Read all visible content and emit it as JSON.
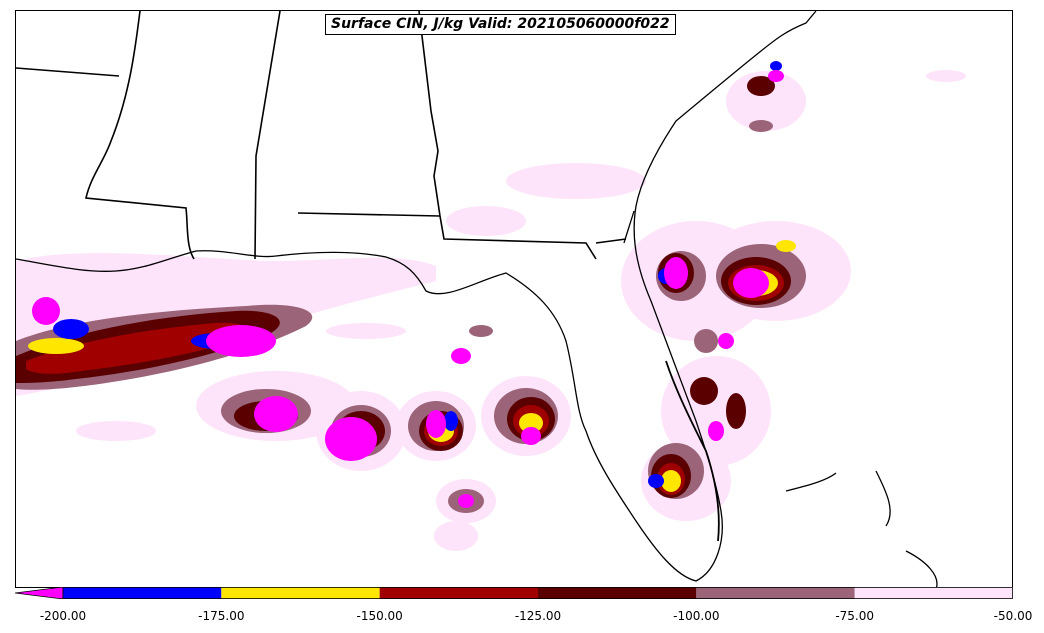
{
  "title": "Surface CIN, J/kg Valid: 202105060000f022",
  "colorbar": {
    "extend_min_color": "#ff00ff",
    "bins": [
      {
        "from": -200,
        "to": -175,
        "color": "#0000ff"
      },
      {
        "from": -175,
        "to": -150,
        "color": "#ffe600"
      },
      {
        "from": -150,
        "to": -125,
        "color": "#a00000"
      },
      {
        "from": -125,
        "to": -100,
        "color": "#5a0000"
      },
      {
        "from": -100,
        "to": -75,
        "color": "#9b6478"
      },
      {
        "from": -75,
        "to": -50,
        "color": "#fde4fa"
      }
    ],
    "tick_labels": [
      "-200.00",
      "-175.00",
      "-150.00",
      "-125.00",
      "-100.00",
      "-75.00",
      "-50.00"
    ]
  },
  "field_colors": {
    "lt_-200": "#ff00ff",
    "-200_-175": "#0000ff",
    "-175_-150": "#ffe600",
    "-150_-125": "#a00000",
    "-125_-100": "#5a0000",
    "-100_-75": "#9b6478",
    "-75_-50": "#fde4fa"
  }
}
